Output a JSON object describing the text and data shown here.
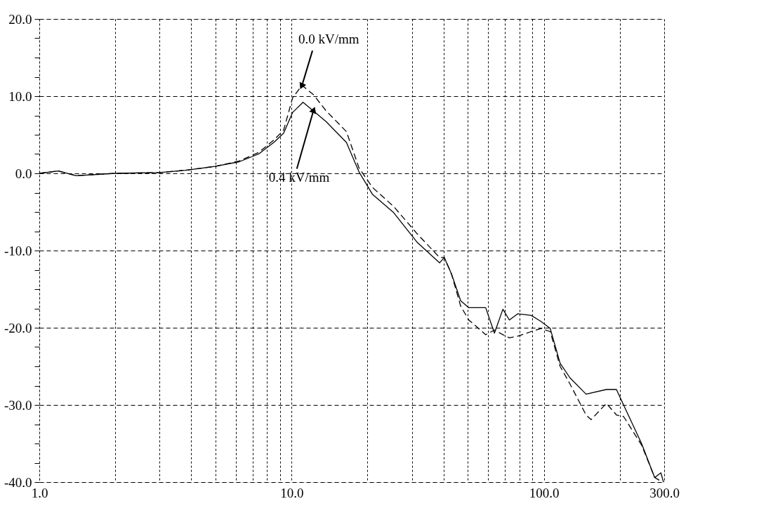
{
  "chart_data": {
    "type": "line",
    "series": [
      {
        "color": "#000000",
        "line_style": "solid",
        "x": [
          1.0,
          1.19,
          1.4,
          2.0,
          3.0,
          3.8,
          4.97,
          6.2,
          7.4,
          8.5,
          9.3,
          10.1,
          11.1,
          12.2,
          13.7,
          16.5,
          18.5,
          20.9,
          25.4,
          31.4,
          38.6,
          40.3,
          43,
          46.8,
          50.4,
          58.8,
          63.7,
          68.8,
          73,
          78.7,
          89,
          97.6,
          106,
          116,
          127,
          147,
          177,
          194,
          207,
          244,
          275,
          291,
          298
        ],
        "values": [
          0,
          0.3,
          -0.3,
          0,
          0.1,
          0.4,
          0.9,
          1.5,
          2.5,
          4.0,
          5.2,
          7.9,
          9.2,
          8.1,
          6.7,
          4.0,
          0.2,
          -2.7,
          -5.1,
          -8.9,
          -11.6,
          -10.9,
          -13,
          -16.5,
          -17.4,
          -17.4,
          -20.7,
          -17.6,
          -19.0,
          -18.2,
          -18.4,
          -19.2,
          -20.1,
          -24.6,
          -26.5,
          -28.6,
          -28,
          -28,
          -30,
          -35,
          -39.4,
          -38.8,
          -40
        ]
      },
      {
        "color": "#000000",
        "line_style": "dashed",
        "x": [
          1.0,
          1.19,
          1.4,
          2.0,
          3.0,
          3.8,
          4.97,
          6.2,
          7.4,
          8.5,
          9.3,
          10.1,
          11.0,
          12.2,
          13.7,
          16.5,
          18.5,
          20.9,
          25.4,
          31.4,
          38.6,
          40.3,
          43,
          46.8,
          50.4,
          58.8,
          63.7,
          68.8,
          73,
          78.7,
          89,
          97.6,
          106,
          116,
          127,
          147,
          154,
          177,
          194,
          207,
          244,
          275,
          295
        ],
        "values": [
          0,
          0.3,
          -0.3,
          0,
          0.1,
          0.4,
          0.9,
          1.6,
          2.7,
          4.3,
          5.6,
          9.8,
          11.4,
          10.2,
          8.1,
          5.4,
          0.7,
          -1.8,
          -4.3,
          -7.8,
          -10.9,
          -10.9,
          -13,
          -17.2,
          -19,
          -20.9,
          -20.3,
          -20.9,
          -21.3,
          -21.1,
          -20.5,
          -20.1,
          -20.5,
          -25,
          -27.3,
          -31.3,
          -31.9,
          -29.8,
          -31.3,
          -31.5,
          -35.2,
          -39.4,
          -40
        ]
      }
    ],
    "log": "x",
    "xlim": [
      1,
      300
    ],
    "xticks": [
      {
        "value": 1,
        "label": "1.0"
      },
      {
        "value": 2,
        "label": null
      },
      {
        "value": 3,
        "label": null
      },
      {
        "value": 4,
        "label": null
      },
      {
        "value": 5,
        "label": null
      },
      {
        "value": 6,
        "label": null
      },
      {
        "value": 7,
        "label": null
      },
      {
        "value": 8,
        "label": null
      },
      {
        "value": 9,
        "label": null
      },
      {
        "value": 10,
        "label": "10.0"
      },
      {
        "value": 20,
        "label": null
      },
      {
        "value": 30,
        "label": null
      },
      {
        "value": 40,
        "label": null
      },
      {
        "value": 50,
        "label": null
      },
      {
        "value": 60,
        "label": null
      },
      {
        "value": 70,
        "label": null
      },
      {
        "value": 80,
        "label": null
      },
      {
        "value": 90,
        "label": null
      },
      {
        "value": 100,
        "label": "100.0"
      },
      {
        "value": 200,
        "label": null
      },
      {
        "value": 300,
        "label": "300.0"
      }
    ],
    "ylim": [
      -40,
      20
    ],
    "yticks": [
      {
        "value": -40,
        "label": "-40.0"
      },
      {
        "value": -37.5,
        "label": null
      },
      {
        "value": -35,
        "label": null
      },
      {
        "value": -32.5,
        "label": null
      },
      {
        "value": -30,
        "label": "-30.0"
      },
      {
        "value": -27.5,
        "label": null
      },
      {
        "value": -25,
        "label": null
      },
      {
        "value": -22.5,
        "label": null
      },
      {
        "value": -20,
        "label": "-20.0"
      },
      {
        "value": -17.5,
        "label": null
      },
      {
        "value": -15,
        "label": null
      },
      {
        "value": -12.5,
        "label": null
      },
      {
        "value": -10,
        "label": "-10.0"
      },
      {
        "value": -7.5,
        "label": null
      },
      {
        "value": -5,
        "label": null
      },
      {
        "value": -2.5,
        "label": null
      },
      {
        "value": 0,
        "label": "0.0"
      },
      {
        "value": 2.5,
        "label": null
      },
      {
        "value": 5,
        "label": null
      },
      {
        "value": 7.5,
        "label": null
      },
      {
        "value": 10,
        "label": "10.0"
      },
      {
        "value": 12.5,
        "label": null
      },
      {
        "value": 15,
        "label": null
      },
      {
        "value": 17.5,
        "label": null
      },
      {
        "value": 20,
        "label": "20.0"
      }
    ],
    "grid": true,
    "marker": "none",
    "annotations": [
      {
        "text": "0.0 kV/mm",
        "x": 11.0,
        "y": 11.4
      },
      {
        "text": "0.4 kV/mm",
        "x": 12.2,
        "y": 8.1
      }
    ]
  }
}
